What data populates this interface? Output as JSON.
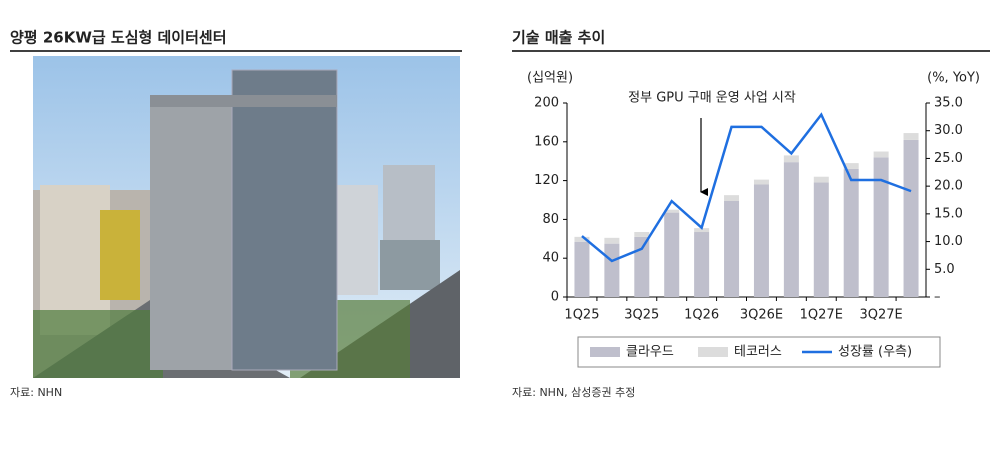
{
  "left_panel": {
    "title": "양평 26KW급 도심형 데이터센터",
    "source": "자료: NHN"
  },
  "chart_data": {
    "type": "bar",
    "title": "기술 매출 추이",
    "source": "자료: NHN, 삼성증권 추정",
    "y_label": "(십억원)",
    "y2_label": "(%, YoY)",
    "annotation": "정부 GPU 구매 운영 사업 시작",
    "stacked": true,
    "categories": [
      "1Q25",
      null,
      "3Q25",
      null,
      "1Q26",
      null,
      "3Q26E",
      null,
      "1Q27E",
      null,
      "3Q27E",
      null
    ],
    "series": [
      {
        "name": "클라우드",
        "type": "bar",
        "color": "#bfbfcc",
        "values": [
          57,
          55,
          62,
          87,
          67,
          99,
          116,
          139,
          118,
          132,
          144,
          162
        ]
      },
      {
        "name": "테코러스",
        "type": "bar",
        "color": "#dcdcdc",
        "values": [
          5,
          6,
          5,
          3,
          4,
          6,
          5,
          7,
          6,
          6,
          6,
          7
        ]
      },
      {
        "name": "성장률 (우측)",
        "type": "line",
        "axis": "y2",
        "color": "#1f6fe0",
        "values": [
          11.0,
          6.5,
          8.7,
          17.3,
          12.5,
          30.7,
          30.7,
          25.9,
          32.9,
          21.1,
          21.1,
          19.1
        ]
      }
    ],
    "ylim": [
      0,
      200
    ],
    "yticks": [
      0,
      40,
      80,
      120,
      160,
      200
    ],
    "y2lim": [
      0,
      35
    ],
    "y2ticks": [
      {
        "value": 0,
        "label": "–"
      },
      {
        "value": 5,
        "label": "5.0"
      },
      {
        "value": 10,
        "label": "10.0"
      },
      {
        "value": 15,
        "label": "15.0"
      },
      {
        "value": 20,
        "label": "20.0"
      },
      {
        "value": 25,
        "label": "25.0"
      },
      {
        "value": 30,
        "label": "30.0"
      },
      {
        "value": 35,
        "label": "35.0"
      }
    ]
  }
}
